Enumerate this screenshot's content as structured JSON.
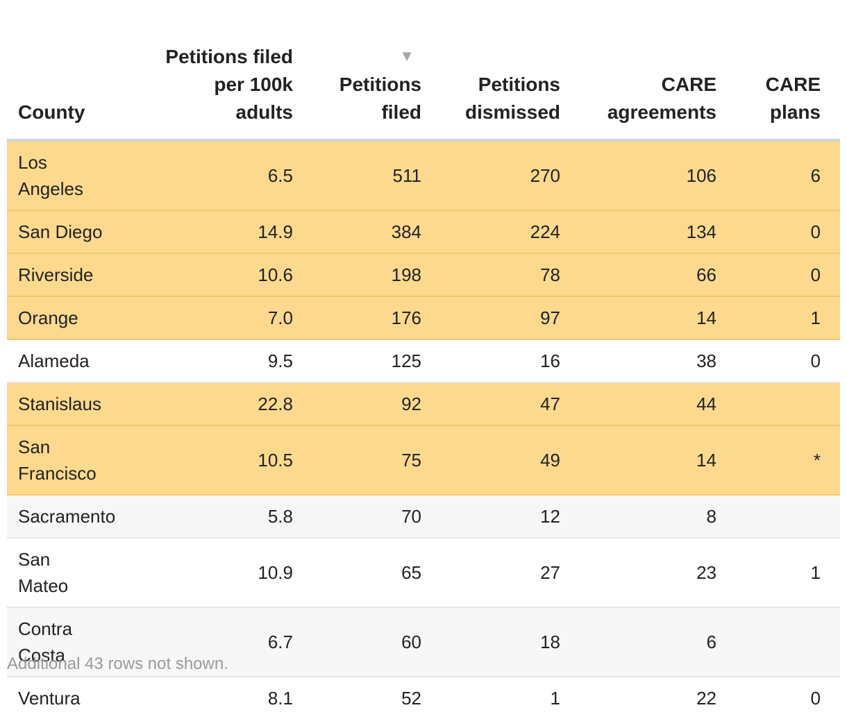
{
  "chart_data": {
    "type": "table",
    "columns": [
      {
        "key": "county",
        "label": "County"
      },
      {
        "key": "per100k",
        "label": "Petitions filed per 100k adults"
      },
      {
        "key": "filed",
        "label": "Petitions filed",
        "sorted": "descending",
        "sort_indicator": "▼"
      },
      {
        "key": "dismissed",
        "label": "Petitions dismissed"
      },
      {
        "key": "agreements",
        "label": "CARE agreements"
      },
      {
        "key": "plans",
        "label": "CARE plans"
      }
    ],
    "rows": [
      {
        "county": "Los Angeles",
        "per100k": "6.5",
        "filed": "511",
        "dismissed": "270",
        "agreements": "106",
        "plans": "6",
        "highlight": true
      },
      {
        "county": "San Diego",
        "per100k": "14.9",
        "filed": "384",
        "dismissed": "224",
        "agreements": "134",
        "plans": "0",
        "highlight": true
      },
      {
        "county": "Riverside",
        "per100k": "10.6",
        "filed": "198",
        "dismissed": "78",
        "agreements": "66",
        "plans": "0",
        "highlight": true
      },
      {
        "county": "Orange",
        "per100k": "7.0",
        "filed": "176",
        "dismissed": "97",
        "agreements": "14",
        "plans": "1",
        "highlight": true
      },
      {
        "county": "Alameda",
        "per100k": "9.5",
        "filed": "125",
        "dismissed": "16",
        "agreements": "38",
        "plans": "0",
        "highlight": false
      },
      {
        "county": "Stanislaus",
        "per100k": "22.8",
        "filed": "92",
        "dismissed": "47",
        "agreements": "44",
        "plans": "",
        "highlight": true
      },
      {
        "county": "San Francisco",
        "per100k": "10.5",
        "filed": "75",
        "dismissed": "49",
        "agreements": "14",
        "plans": "*",
        "highlight": true
      },
      {
        "county": "Sacramento",
        "per100k": "5.8",
        "filed": "70",
        "dismissed": "12",
        "agreements": "8",
        "plans": "",
        "highlight": false
      },
      {
        "county": "San Mateo",
        "per100k": "10.9",
        "filed": "65",
        "dismissed": "27",
        "agreements": "23",
        "plans": "1",
        "highlight": false
      },
      {
        "county": "Contra Costa",
        "per100k": "6.7",
        "filed": "60",
        "dismissed": "18",
        "agreements": "6",
        "plans": "",
        "highlight": false
      },
      {
        "county": "Ventura",
        "per100k": "8.1",
        "filed": "52",
        "dismissed": "1",
        "agreements": "22",
        "plans": "0",
        "highlight": false
      }
    ],
    "footer_note": "Additional 43 rows not shown."
  },
  "colors": {
    "highlight_row": "#fdd98e",
    "alt_row": "#f7f7f7",
    "text": "#222222",
    "note": "#9a9a9a"
  }
}
